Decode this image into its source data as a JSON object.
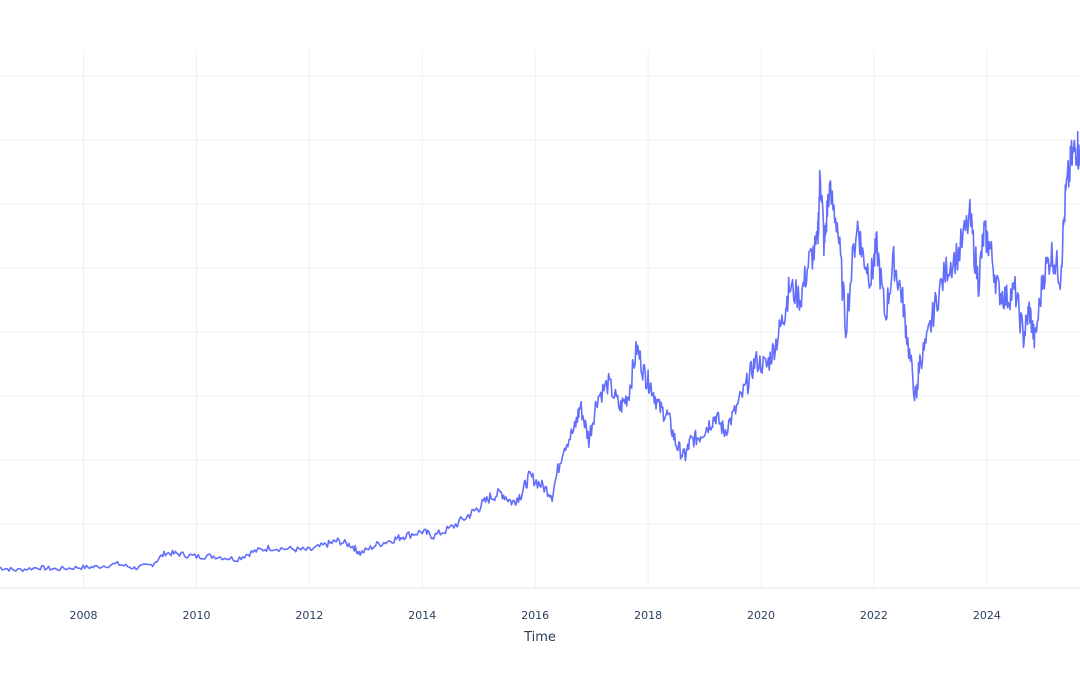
{
  "chart_data": {
    "type": "line",
    "title": "",
    "xlabel": "Time",
    "ylabel": "",
    "x_tick_labels": [
      "2008",
      "2010",
      "2012",
      "2014",
      "2016",
      "2018",
      "2020",
      "2022",
      "2024"
    ],
    "x_tick_values": [
      2008,
      2010,
      2012,
      2014,
      2016,
      2018,
      2020,
      2022,
      2024
    ],
    "xlim": [
      2006.52,
      2025.65
    ],
    "y_tick_labels": [],
    "ylim": [
      0,
      100
    ],
    "grid": true,
    "legend": "none",
    "series": [
      {
        "color": "#636efa",
        "x": [
          2006.5,
          2006.8,
          2007.2,
          2007.5,
          2007.9,
          2008.2,
          2008.6,
          2008.9,
          2009.2,
          2009.45,
          2009.7,
          2010.0,
          2010.3,
          2010.7,
          2011.0,
          2011.3,
          2011.7,
          2012.0,
          2012.3,
          2012.5,
          2012.75,
          2012.9,
          2013.2,
          2013.5,
          2013.7,
          2014.0,
          2014.2,
          2014.5,
          2014.8,
          2015.0,
          2015.2,
          2015.4,
          2015.6,
          2015.75,
          2015.9,
          2016.1,
          2016.3,
          2016.5,
          2016.7,
          2016.8,
          2016.95,
          2017.1,
          2017.3,
          2017.5,
          2017.65,
          2017.8,
          2017.95,
          2018.05,
          2018.2,
          2018.35,
          2018.5,
          2018.65,
          2018.75,
          2018.9,
          2019.05,
          2019.2,
          2019.35,
          2019.55,
          2019.75,
          2019.9,
          2020.1,
          2020.25,
          2020.4,
          2020.5,
          2020.7,
          2020.85,
          2021.0,
          2021.05,
          2021.12,
          2021.2,
          2021.35,
          2021.5,
          2021.7,
          2021.8,
          2021.95,
          2022.05,
          2022.2,
          2022.35,
          2022.5,
          2022.6,
          2022.75,
          2022.8,
          2022.95,
          2023.1,
          2023.3,
          2023.5,
          2023.7,
          2023.85,
          2023.95,
          2024.05,
          2024.2,
          2024.35,
          2024.5,
          2024.65,
          2024.75,
          2024.85,
          2025.0,
          2025.15,
          2025.3,
          2025.4,
          2025.5,
          2025.6,
          2025.65
        ],
        "y": [
          2.0,
          1.5,
          2.0,
          1.7,
          2.0,
          2.1,
          2.7,
          1.9,
          2.5,
          4.8,
          4.6,
          4.1,
          4.2,
          3.6,
          5.0,
          5.8,
          5.5,
          5.3,
          6.4,
          7.1,
          6.2,
          4.7,
          6.4,
          7.4,
          8.1,
          8.9,
          8.0,
          9.5,
          11.8,
          13.5,
          15.4,
          16.3,
          14.4,
          16.0,
          19.5,
          17.8,
          16.0,
          25.0,
          28.5,
          33.0,
          26.5,
          34.5,
          37.2,
          32.5,
          35.0,
          44.0,
          38.5,
          36.8,
          32.5,
          31.0,
          25.5,
          23.0,
          26.2,
          27.0,
          29.0,
          31.0,
          28.0,
          32.0,
          37.0,
          41.5,
          40.5,
          44.5,
          50.0,
          55.5,
          53.5,
          60.5,
          63.5,
          78.0,
          63.0,
          74.0,
          68.0,
          48.5,
          68.0,
          62.0,
          57.5,
          63.5,
          50.0,
          60.5,
          54.0,
          45.0,
          33.5,
          41.0,
          45.5,
          53.0,
          59.5,
          62.0,
          69.0,
          56.5,
          66.0,
          63.5,
          55.0,
          53.5,
          55.0,
          46.0,
          51.5,
          45.0,
          58.0,
          62.0,
          58.0,
          73.5,
          80.0,
          83.0,
          79.0
        ]
      }
    ]
  }
}
